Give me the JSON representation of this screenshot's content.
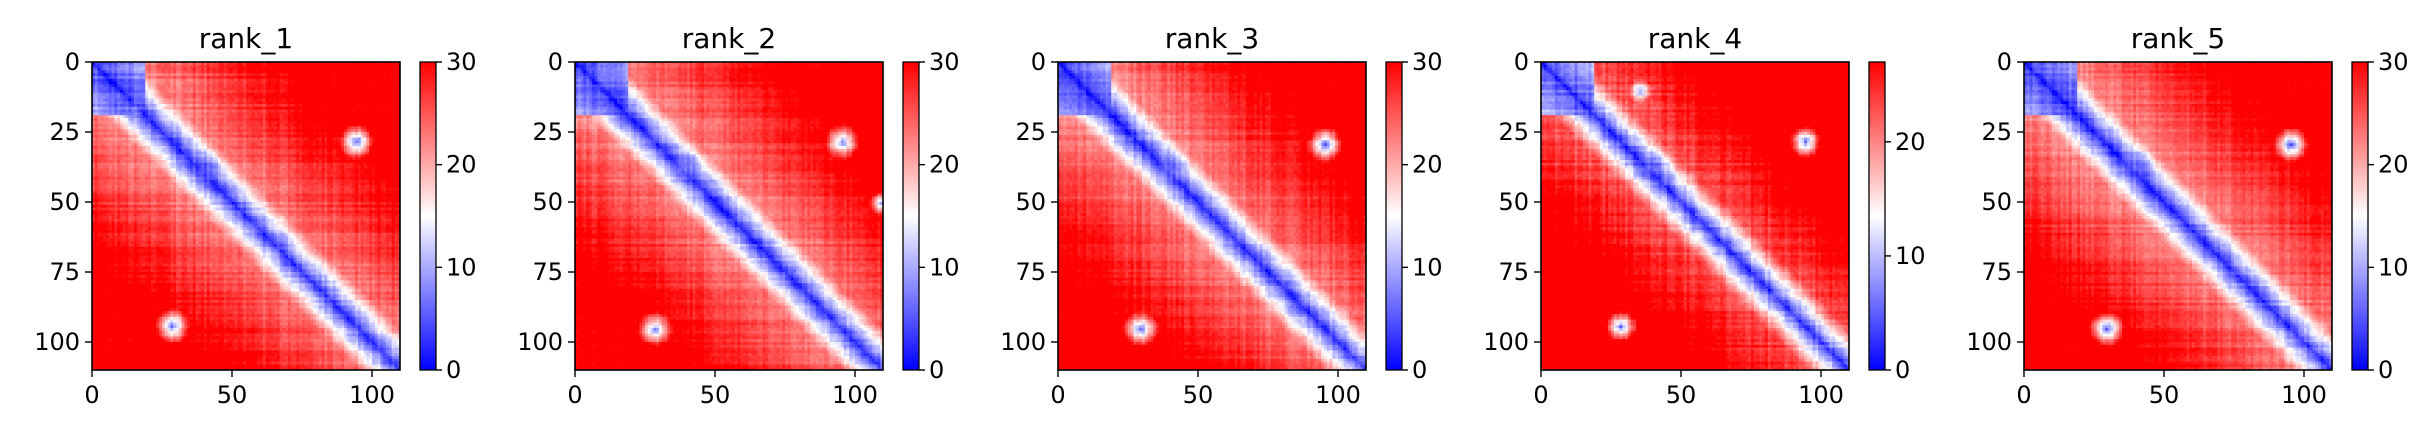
{
  "figure": {
    "background": "#ffffff"
  },
  "chart_data": [
    {
      "type": "heatmap",
      "title": "rank_1",
      "n": 110,
      "xlim": [
        0,
        110
      ],
      "ylim": [
        110,
        0
      ],
      "xticks": [
        0,
        50,
        100
      ],
      "yticks": [
        0,
        25,
        50,
        75,
        100
      ],
      "colorbar": {
        "ticks": [
          0,
          10,
          20,
          30
        ],
        "range": [
          0,
          30
        ],
        "colormap": "bwr",
        "low": "#0000ff",
        "mid": "#ffffff",
        "high": "#ff0000"
      },
      "diagonal_band_width": 6,
      "features": [
        {
          "type": "low_block",
          "start": 0,
          "end": 18,
          "value": 4
        },
        {
          "type": "spot",
          "x": 94,
          "y": 28,
          "r": 3,
          "value": 6
        },
        {
          "type": "spot",
          "x": 28,
          "y": 94,
          "r": 3,
          "value": 6
        },
        {
          "type": "spot",
          "x": 40,
          "y": 37,
          "r": 3,
          "value": 6
        },
        {
          "type": "spot",
          "x": 14,
          "y": 17,
          "r": 2,
          "value": 8
        }
      ]
    },
    {
      "type": "heatmap",
      "title": "rank_2",
      "n": 110,
      "xlim": [
        0,
        110
      ],
      "ylim": [
        110,
        0
      ],
      "xticks": [
        0,
        50,
        100
      ],
      "yticks": [
        0,
        25,
        50,
        75,
        100
      ],
      "colorbar": {
        "ticks": [
          0,
          10,
          20,
          30
        ],
        "range": [
          0,
          30
        ],
        "colormap": "bwr",
        "low": "#0000ff",
        "mid": "#ffffff",
        "high": "#ff0000"
      },
      "diagonal_band_width": 6,
      "features": [
        {
          "type": "low_block",
          "start": 0,
          "end": 18,
          "value": 4
        },
        {
          "type": "spot",
          "x": 95,
          "y": 28,
          "r": 3,
          "value": 7
        },
        {
          "type": "spot",
          "x": 28,
          "y": 95,
          "r": 3,
          "value": 7
        },
        {
          "type": "spot",
          "x": 40,
          "y": 37,
          "r": 3,
          "value": 6
        },
        {
          "type": "spot",
          "x": 109,
          "y": 50,
          "r": 2,
          "value": 8
        }
      ]
    },
    {
      "type": "heatmap",
      "title": "rank_3",
      "n": 110,
      "xlim": [
        0,
        110
      ],
      "ylim": [
        110,
        0
      ],
      "xticks": [
        0,
        50,
        100
      ],
      "yticks": [
        0,
        25,
        50,
        75,
        100
      ],
      "colorbar": {
        "ticks": [
          0,
          10,
          20,
          30
        ],
        "range": [
          0,
          30
        ],
        "colormap": "bwr",
        "low": "#0000ff",
        "mid": "#ffffff",
        "high": "#ff0000"
      },
      "diagonal_band_width": 6,
      "features": [
        {
          "type": "low_block",
          "start": 0,
          "end": 18,
          "value": 4
        },
        {
          "type": "spot",
          "x": 95,
          "y": 29,
          "r": 3,
          "value": 6
        },
        {
          "type": "spot",
          "x": 29,
          "y": 95,
          "r": 3,
          "value": 6
        },
        {
          "type": "spot",
          "x": 40,
          "y": 37,
          "r": 3,
          "value": 6
        }
      ]
    },
    {
      "type": "heatmap",
      "title": "rank_4",
      "n": 110,
      "xlim": [
        0,
        110
      ],
      "ylim": [
        110,
        0
      ],
      "xticks": [
        0,
        50,
        100
      ],
      "yticks": [
        0,
        25,
        50,
        75,
        100
      ],
      "colorbar": {
        "ticks": [
          0,
          10,
          20
        ],
        "range": [
          0,
          27
        ],
        "colormap": "bwr",
        "low": "#0000ff",
        "mid": "#ffffff",
        "high": "#ff0000"
      },
      "diagonal_band_width": 6,
      "features": [
        {
          "type": "low_block",
          "start": 0,
          "end": 18,
          "value": 4
        },
        {
          "type": "spot",
          "x": 94,
          "y": 28,
          "r": 3,
          "value": 6
        },
        {
          "type": "spot",
          "x": 28,
          "y": 94,
          "r": 3,
          "value": 6
        },
        {
          "type": "spot",
          "x": 40,
          "y": 37,
          "r": 3,
          "value": 6
        },
        {
          "type": "spot",
          "x": 35,
          "y": 10,
          "r": 2,
          "value": 8
        }
      ]
    },
    {
      "type": "heatmap",
      "title": "rank_5",
      "n": 110,
      "xlim": [
        0,
        110
      ],
      "ylim": [
        110,
        0
      ],
      "xticks": [
        0,
        50,
        100
      ],
      "yticks": [
        0,
        25,
        50,
        75,
        100
      ],
      "colorbar": {
        "ticks": [
          0,
          10,
          20,
          30
        ],
        "range": [
          0,
          30
        ],
        "colormap": "bwr",
        "low": "#0000ff",
        "mid": "#ffffff",
        "high": "#ff0000"
      },
      "diagonal_band_width": 6,
      "features": [
        {
          "type": "low_block",
          "start": 0,
          "end": 18,
          "value": 4
        },
        {
          "type": "spot",
          "x": 95,
          "y": 29,
          "r": 3,
          "value": 5
        },
        {
          "type": "spot",
          "x": 29,
          "y": 95,
          "r": 3,
          "value": 5
        },
        {
          "type": "spot",
          "x": 40,
          "y": 37,
          "r": 3,
          "value": 6
        }
      ]
    }
  ]
}
